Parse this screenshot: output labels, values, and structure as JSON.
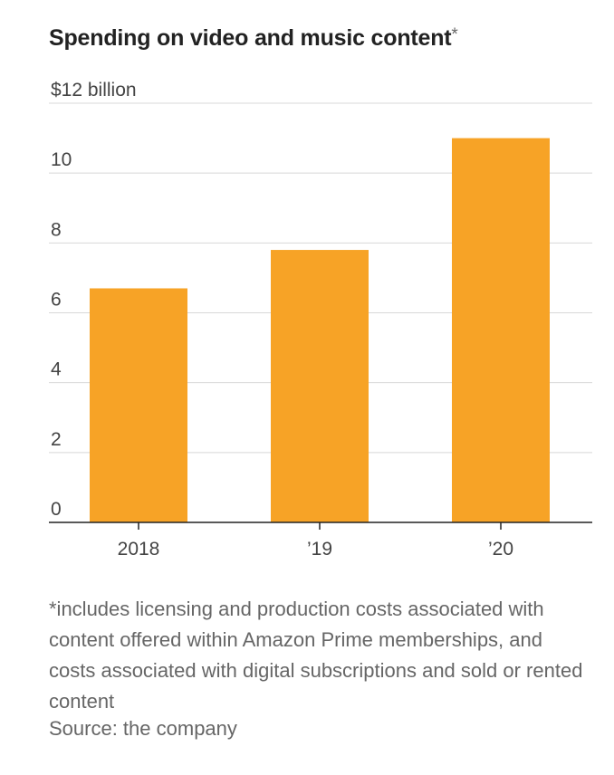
{
  "chart_data": {
    "type": "bar",
    "title": "Spending on video and music content",
    "title_suffix": "*",
    "unit_label": "$12 billion",
    "categories": [
      "2018",
      "’19",
      "’20"
    ],
    "values": [
      6.7,
      7.8,
      11.0
    ],
    "ylim": [
      0,
      12
    ],
    "yticks": [
      0,
      2,
      4,
      6,
      8,
      10,
      12
    ],
    "ytick_labels": [
      "0",
      "2",
      "4",
      "6",
      "8",
      "10",
      "$12 billion"
    ],
    "xlabel": "",
    "ylabel": "",
    "grid": true,
    "bar_color": "#F7A326"
  },
  "footnote": "*includes licensing and production costs associated with content offered within Amazon Prime memberships, and costs associated with digital subscriptions and sold or rented content",
  "source": "Source: the company"
}
